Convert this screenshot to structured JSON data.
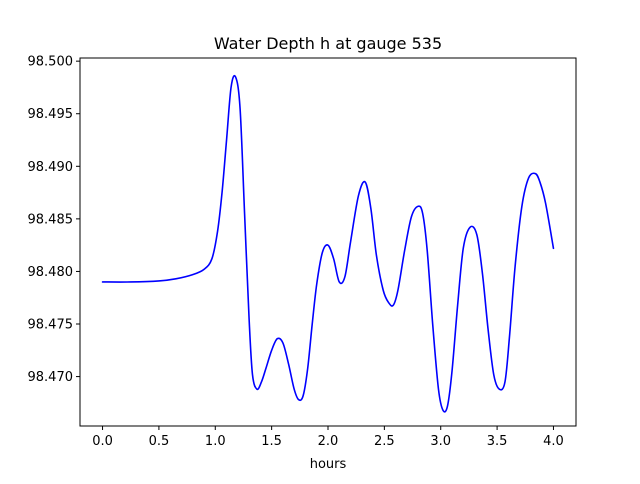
{
  "chart_data": {
    "type": "line",
    "title": "Water Depth h at gauge 535",
    "xlabel": "hours",
    "ylabel": "",
    "xlim": [
      -0.2,
      4.2
    ],
    "ylim": [
      98.4653,
      98.5003
    ],
    "grid": false,
    "legend": "none",
    "x_ticks": [
      "0.0",
      "0.5",
      "1.0",
      "1.5",
      "2.0",
      "2.5",
      "3.0",
      "3.5",
      "4.0"
    ],
    "x_tick_values": [
      0.0,
      0.5,
      1.0,
      1.5,
      2.0,
      2.5,
      3.0,
      3.5,
      4.0
    ],
    "y_ticks": [
      "98.470",
      "98.475",
      "98.480",
      "98.485",
      "98.490",
      "98.495",
      "98.500"
    ],
    "y_tick_values": [
      98.47,
      98.475,
      98.48,
      98.485,
      98.49,
      98.495,
      98.5
    ],
    "series": [
      {
        "color": "#0000ff",
        "x": [
          0.0,
          0.25,
          0.5,
          0.65,
          0.8,
          0.9,
          0.97,
          1.02,
          1.06,
          1.1,
          1.14,
          1.18,
          1.22,
          1.26,
          1.3,
          1.33,
          1.37,
          1.41,
          1.45,
          1.5,
          1.55,
          1.6,
          1.65,
          1.7,
          1.74,
          1.78,
          1.82,
          1.86,
          1.9,
          1.95,
          2.0,
          2.05,
          2.1,
          2.15,
          2.2,
          2.27,
          2.33,
          2.38,
          2.43,
          2.49,
          2.54,
          2.58,
          2.62,
          2.68,
          2.74,
          2.8,
          2.84,
          2.88,
          2.93,
          2.98,
          3.02,
          3.06,
          3.1,
          3.15,
          3.2,
          3.26,
          3.32,
          3.37,
          3.42,
          3.47,
          3.52,
          3.57,
          3.61,
          3.66,
          3.72,
          3.78,
          3.84,
          3.88,
          3.93,
          4.0
        ],
        "y": [
          98.479,
          98.479,
          98.4791,
          98.4793,
          98.4797,
          98.4802,
          98.4812,
          98.4838,
          98.4875,
          98.4925,
          98.4975,
          98.4985,
          98.4955,
          98.4855,
          98.4755,
          98.4702,
          98.4688,
          98.4695,
          98.4708,
          98.4725,
          98.4736,
          98.4732,
          98.4712,
          98.4688,
          98.4678,
          98.4682,
          98.4708,
          98.475,
          98.4788,
          98.4818,
          98.4825,
          98.4812,
          98.479,
          98.4795,
          98.4828,
          98.4872,
          98.4885,
          98.486,
          98.4815,
          98.4782,
          98.477,
          98.4768,
          98.4782,
          98.482,
          98.4852,
          98.4862,
          98.4855,
          98.482,
          98.4748,
          98.4688,
          98.4668,
          98.4672,
          98.4705,
          98.4768,
          98.4822,
          98.4842,
          98.4835,
          98.4798,
          98.4745,
          98.4702,
          98.4688,
          98.4695,
          98.4738,
          98.4805,
          98.4862,
          98.4889,
          98.4893,
          98.4885,
          98.4865,
          98.4822
        ]
      }
    ]
  }
}
